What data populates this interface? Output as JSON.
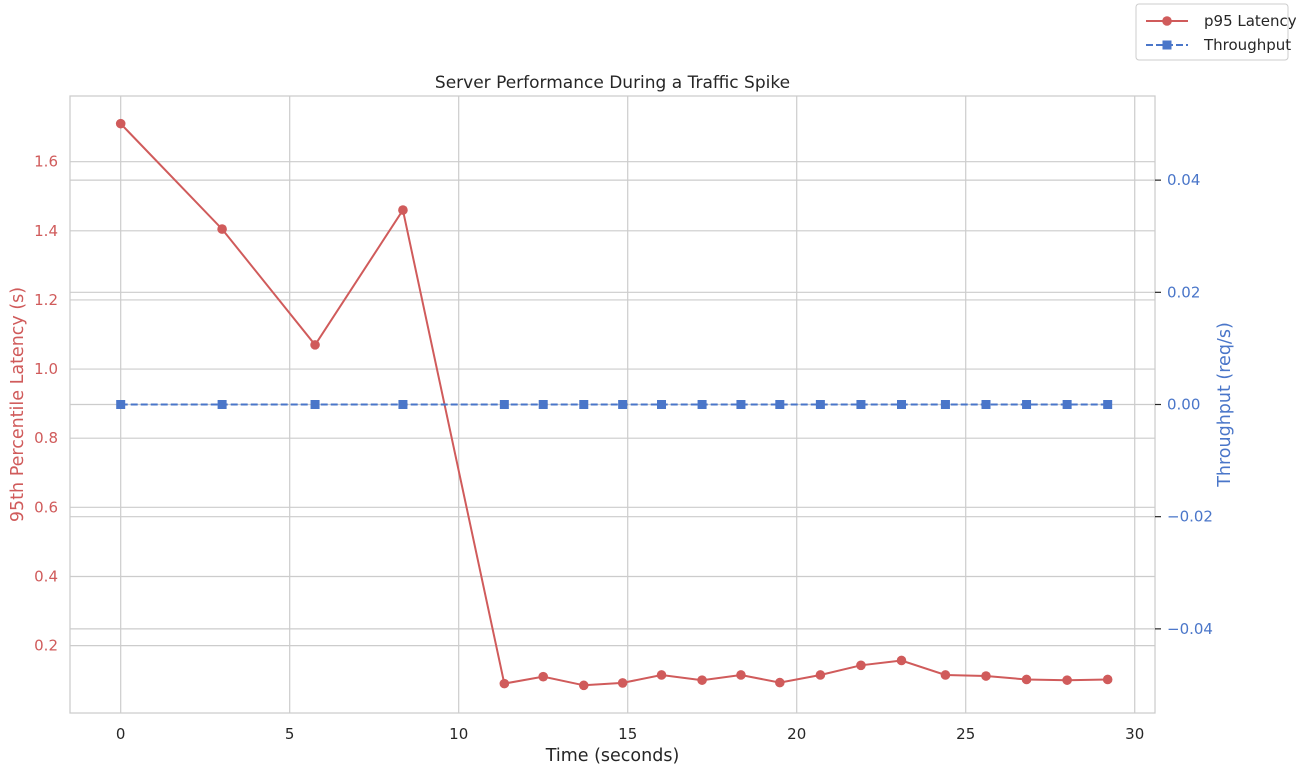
{
  "chart_data": {
    "type": "line",
    "title": "Server Performance During a Traffic Spike",
    "xlabel": "Time (seconds)",
    "ylabel_left": "95th Percentile Latency (s)",
    "ylabel_right": "Throughput (req/s)",
    "xlim": [
      -1.5,
      30.6
    ],
    "ylim_left": [
      0.005,
      1.79
    ],
    "ylim_right": [
      -0.055,
      0.055
    ],
    "x_ticks": [
      0,
      5,
      10,
      15,
      20,
      25,
      30
    ],
    "y_left_ticks": [
      0.2,
      0.4,
      0.6,
      0.8,
      1.0,
      1.2,
      1.4,
      1.6
    ],
    "y_right_ticks": [
      -0.04,
      -0.02,
      0.0,
      0.02,
      0.04
    ],
    "x_tick_labels": [
      "0",
      "5",
      "10",
      "15",
      "20",
      "25",
      "30"
    ],
    "y_left_tick_labels": [
      "0.2",
      "0.4",
      "0.6",
      "0.8",
      "1.0",
      "1.2",
      "1.4",
      "1.6"
    ],
    "y_right_tick_labels": [
      "−0.04",
      "−0.02",
      "0.00",
      "0.02",
      "0.04"
    ],
    "grid": true,
    "legend_position": "top-right",
    "series": [
      {
        "name": "p95 Latency",
        "axis": "left",
        "color": "#d05b5b",
        "marker": "circle",
        "linestyle": "solid",
        "x": [
          0,
          3.0,
          5.75,
          8.35,
          11.35,
          12.5,
          13.7,
          14.85,
          16.0,
          17.2,
          18.35,
          19.5,
          20.7,
          21.9,
          23.1,
          24.4,
          25.6,
          26.8,
          28.0,
          29.2
        ],
        "values": [
          1.71,
          1.405,
          1.07,
          1.46,
          0.09,
          0.11,
          0.085,
          0.092,
          0.115,
          0.1,
          0.115,
          0.093,
          0.115,
          0.143,
          0.157,
          0.115,
          0.112,
          0.102,
          0.1,
          0.102
        ]
      },
      {
        "name": "Throughput",
        "axis": "right",
        "color": "#4a76c9",
        "marker": "square",
        "linestyle": "dashed",
        "x": [
          0,
          3.0,
          5.75,
          8.35,
          11.35,
          12.5,
          13.7,
          14.85,
          16.0,
          17.2,
          18.35,
          19.5,
          20.7,
          21.9,
          23.1,
          24.4,
          25.6,
          26.8,
          28.0,
          29.2
        ],
        "values": [
          0,
          0,
          0,
          0,
          0,
          0,
          0,
          0,
          0,
          0,
          0,
          0,
          0,
          0,
          0,
          0,
          0,
          0,
          0,
          0
        ]
      }
    ]
  }
}
